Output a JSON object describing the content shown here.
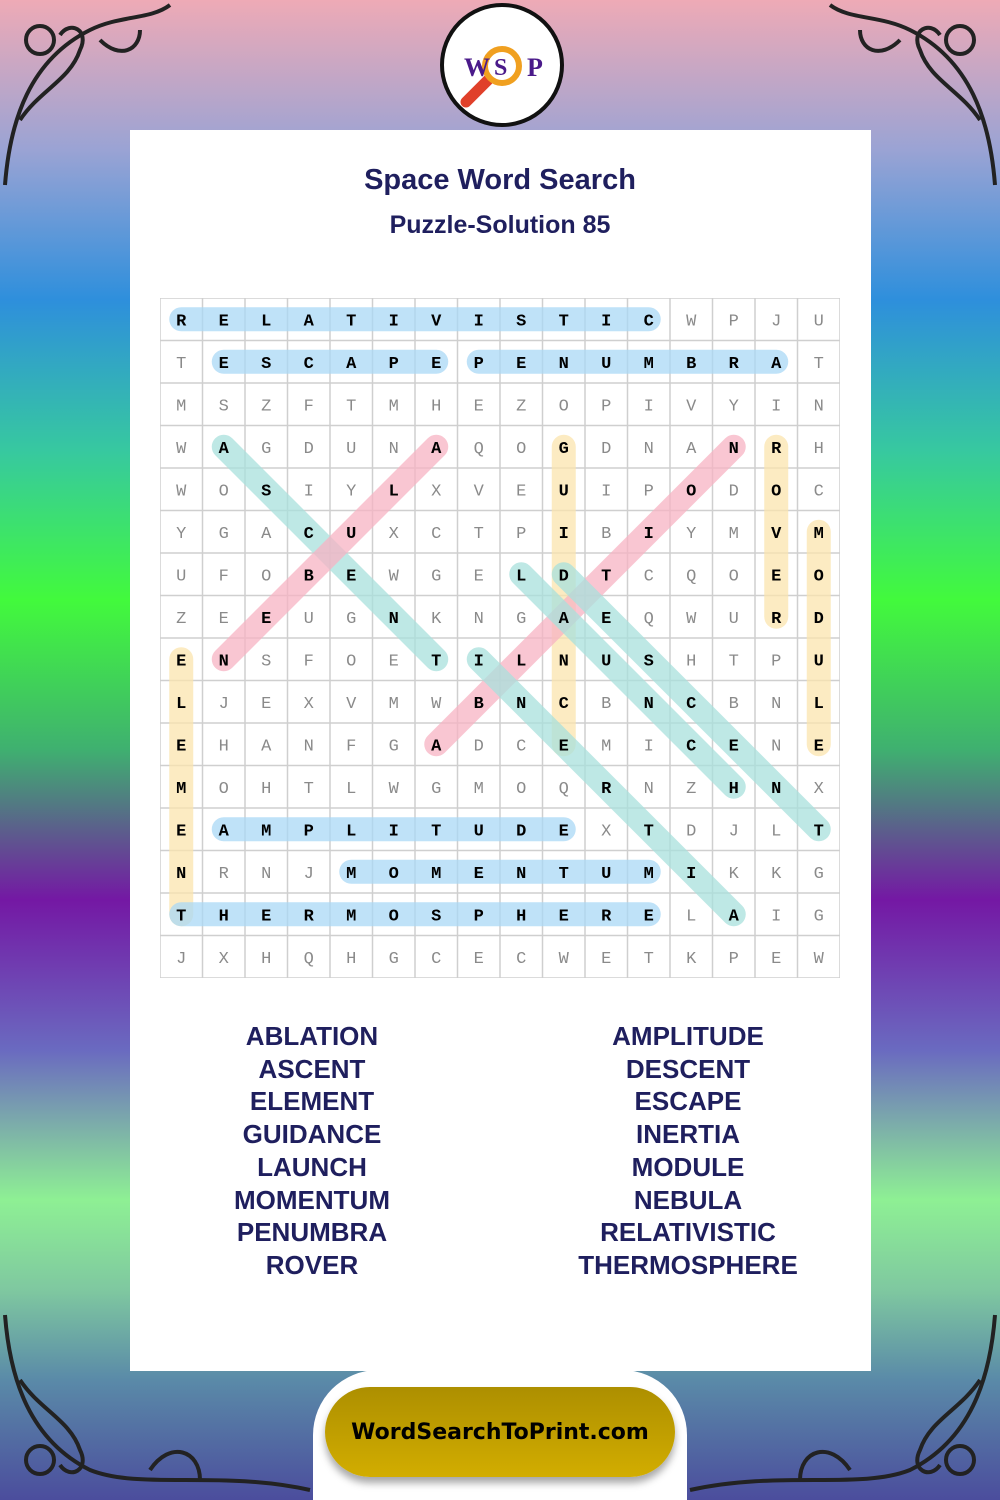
{
  "logo": {
    "letters": [
      "W",
      "S",
      "P"
    ],
    "icon": "magnifier-icon"
  },
  "title": "Space Word Search",
  "subtitle": "Puzzle-Solution 85",
  "grid": {
    "rows": [
      "RELATIVISTICWPJU",
      "TESCAPEPENUMBRAT",
      "MSZFTMHEZOPIVYIN",
      "WAGDUNAQOGDNANRH",
      "WOSIYLXVEUIPODOC",
      "YGACUXCTPIBIYMVM",
      "UFOBEWGELDTCQOEO",
      "ZEEUGNKNGAEQWURD",
      "ENSFOETILNUSHTPU",
      "LJEXVMWBNCBNCBNL",
      "EHANFGADCEMICENE",
      "MOHTLWGMOQRNZHNX",
      "EAMPLITUDEXTDJLT",
      "NRNJMOMENTUMIKKG",
      "THERMOSPHERELAIG",
      "JXHQHGCECWETKPEW"
    ],
    "highlights": [
      {
        "word": "RELATIVISTIC",
        "from": [
          0,
          0
        ],
        "to": [
          0,
          11
        ],
        "color": "#a9d8f5"
      },
      {
        "word": "ESCAPE",
        "from": [
          1,
          1
        ],
        "to": [
          1,
          6
        ],
        "color": "#a9d8f5"
      },
      {
        "word": "PENUMBRA",
        "from": [
          1,
          7
        ],
        "to": [
          1,
          14
        ],
        "color": "#a9d8f5"
      },
      {
        "word": "ASCENT",
        "from": [
          3,
          1
        ],
        "to": [
          8,
          6
        ],
        "color": "#a8e0dc"
      },
      {
        "word": "NEBULA",
        "from": [
          8,
          1
        ],
        "to": [
          3,
          6
        ],
        "color": "#f7b3c3"
      },
      {
        "word": "GUIDANCE",
        "from": [
          3,
          9
        ],
        "to": [
          10,
          9
        ],
        "color": "#fbe4ae"
      },
      {
        "word": "ABLATION",
        "from": [
          10,
          6
        ],
        "to": [
          3,
          13
        ],
        "color": "#f7b3c3"
      },
      {
        "word": "ROVER",
        "from": [
          3,
          14
        ],
        "to": [
          7,
          14
        ],
        "color": "#fbe4ae"
      },
      {
        "word": "MODULE",
        "from": [
          5,
          15
        ],
        "to": [
          10,
          15
        ],
        "color": "#fbe4ae"
      },
      {
        "word": "LAUNCH",
        "from": [
          6,
          8
        ],
        "to": [
          11,
          13
        ],
        "color": "#a8e0dc"
      },
      {
        "word": "DESCENT",
        "from": [
          6,
          9
        ],
        "to": [
          12,
          15
        ],
        "color": "#a8e0dc"
      },
      {
        "word": "INERTIA",
        "from": [
          8,
          7
        ],
        "to": [
          14,
          13
        ],
        "color": "#a8e0dc"
      },
      {
        "word": "ELEMENT",
        "from": [
          8,
          0
        ],
        "to": [
          14,
          0
        ],
        "color": "#fbe4ae"
      },
      {
        "word": "AMPLITUDE",
        "from": [
          12,
          1
        ],
        "to": [
          12,
          9
        ],
        "color": "#a9d8f5"
      },
      {
        "word": "MOMENTUM",
        "from": [
          13,
          4
        ],
        "to": [
          13,
          11
        ],
        "color": "#a9d8f5"
      },
      {
        "word": "THERMOSPHERE",
        "from": [
          14,
          0
        ],
        "to": [
          14,
          11
        ],
        "color": "#a9d8f5"
      }
    ]
  },
  "word_list": {
    "left": [
      "ABLATION",
      "ASCENT",
      "ELEMENT",
      "GUIDANCE",
      "LAUNCH",
      "MOMENTUM",
      "PENUMBRA",
      "ROVER"
    ],
    "right": [
      "AMPLITUDE",
      "DESCENT",
      "ESCAPE",
      "INERTIA",
      "MODULE",
      "NEBULA",
      "RELATIVISTIC",
      "THERMOSPHERE"
    ]
  },
  "footer": {
    "site": "WordSearchToPrint.com"
  }
}
